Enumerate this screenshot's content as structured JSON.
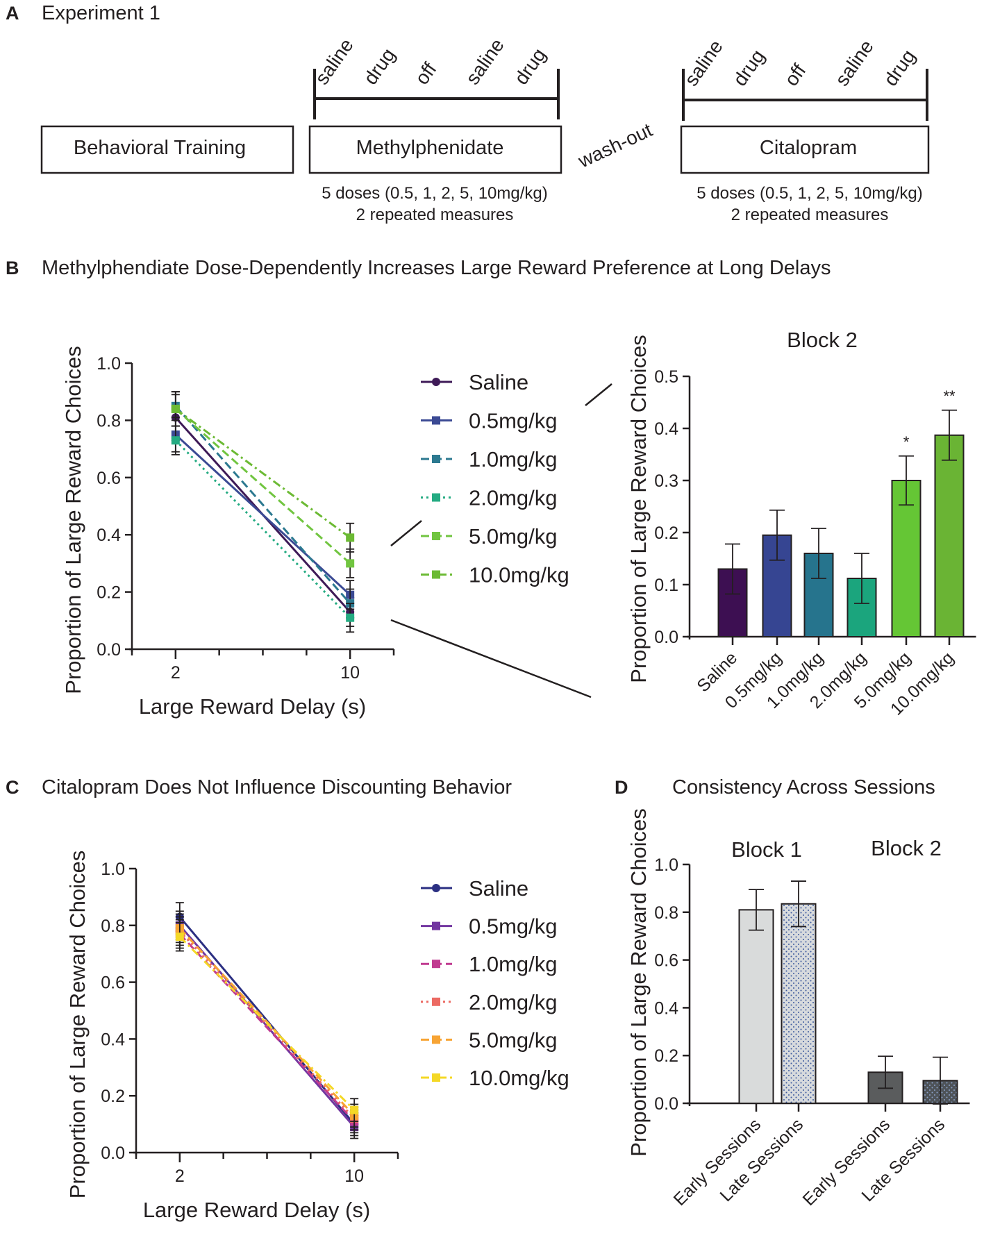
{
  "panels": {
    "A": {
      "letter": "A",
      "title": "Experiment 1",
      "boxes": {
        "training": "Behavioral Training",
        "mph": "Methylphenidate",
        "cit": "Citalopram"
      },
      "washout": "wash-out",
      "phases": [
        "saline",
        "drug",
        "off",
        "saline",
        "drug"
      ],
      "dose_note": "5 doses (0.5, 1, 2, 5, 10mg/kg)",
      "measures_note": "2 repeated measures"
    },
    "B": {
      "letter": "B",
      "title": "Methylphendiate Dose-Dependently Increases Large Reward Preference at Long Delays"
    },
    "C": {
      "letter": "C",
      "title": "Citalopram Does Not Influence Discounting Behavior"
    },
    "D": {
      "letter": "D",
      "title": "Consistency Across Sessions"
    }
  },
  "colors": {
    "text": "#231f20",
    "mph_series": [
      "#3e1a57",
      "#3b4a94",
      "#2c7990",
      "#24ab82",
      "#71c540",
      "#6cba34"
    ],
    "mph_bars": [
      "#3d0f52",
      "#364592",
      "#26748d",
      "#1ba57d",
      "#65c635",
      "#6ab434"
    ],
    "cit_series": [
      "#2b2f82",
      "#7236a0",
      "#c03a90",
      "#ec6a63",
      "#f7a434",
      "#f4d826"
    ],
    "session_bars": [
      "#d9dbdb",
      "#d7dadd",
      "#5a5c5d",
      "#4e5358"
    ]
  },
  "chart_data": [
    {
      "id": "B-line",
      "type": "line",
      "x": [
        2,
        10
      ],
      "xticks": [
        "2",
        "10"
      ],
      "xlim": [
        0,
        12
      ],
      "ylim": [
        0,
        1
      ],
      "yticks": [
        "0.0",
        "0.2",
        "0.4",
        "0.6",
        "0.8",
        "1.0"
      ],
      "xlabel": "Large Reward  Delay  (s)",
      "ylabel": "Proportion of  Large  Reward Choices",
      "legend_position": "right",
      "series": [
        {
          "name": "Saline",
          "values": [
            0.81,
            0.13
          ],
          "err": [
            0.08,
            0.05
          ],
          "marker": "circle",
          "dash": ""
        },
        {
          "name": "0.5mg/kg",
          "values": [
            0.75,
            0.19
          ],
          "err": [
            0.06,
            0.05
          ],
          "marker": "square",
          "dash": ""
        },
        {
          "name": "1.0mg/kg",
          "values": [
            0.85,
            0.16
          ],
          "err": [
            0.05,
            0.05
          ],
          "marker": "square",
          "dash": "12,6"
        },
        {
          "name": "2.0mg/kg",
          "values": [
            0.73,
            0.11
          ],
          "err": [
            0.05,
            0.05
          ],
          "marker": "square",
          "dash": "3,5"
        },
        {
          "name": "5.0mg/kg",
          "values": [
            0.84,
            0.3
          ],
          "err": [
            0.06,
            0.05
          ],
          "marker": "square",
          "dash": "12,6"
        },
        {
          "name": "10.0mg/kg",
          "values": [
            0.84,
            0.39
          ],
          "err": [
            0.06,
            0.05
          ],
          "marker": "square",
          "dash": "12,5,3,5"
        }
      ]
    },
    {
      "id": "B-bar",
      "type": "bar",
      "title": "Block 2",
      "categories": [
        "Saline",
        "0.5mg/kg",
        "1.0mg/kg",
        "2.0mg/kg",
        "5.0mg/kg",
        "10.0mg/kg"
      ],
      "values": [
        0.13,
        0.195,
        0.16,
        0.112,
        0.3,
        0.387
      ],
      "err": [
        0.048,
        0.048,
        0.048,
        0.048,
        0.047,
        0.048
      ],
      "significance": [
        "",
        "",
        "",
        "",
        "*",
        "**"
      ],
      "ylim": [
        0,
        0.5
      ],
      "yticks": [
        "0.0",
        "0.1",
        "0.2",
        "0.3",
        "0.4",
        "0.5"
      ],
      "ylabel": "Proportion of  Large  Reward Choices"
    },
    {
      "id": "C-line",
      "type": "line",
      "x": [
        2,
        10
      ],
      "xticks": [
        "2",
        "10"
      ],
      "xlim": [
        0,
        12
      ],
      "ylim": [
        0,
        1
      ],
      "yticks": [
        "0.0",
        "0.2",
        "0.4",
        "0.6",
        "0.8",
        "1.0"
      ],
      "xlabel": "Large Reward  Delay  (s)",
      "ylabel": "Proportion of  Large  Reward Choices",
      "legend_position": "right",
      "series": [
        {
          "name": "Saline",
          "values": [
            0.83,
            0.1
          ],
          "err": [
            0.05,
            0.04
          ],
          "marker": "circle",
          "dash": ""
        },
        {
          "name": "0.5mg/kg",
          "values": [
            0.8,
            0.09
          ],
          "err": [
            0.05,
            0.04
          ],
          "marker": "square",
          "dash": ""
        },
        {
          "name": "1.0mg/kg",
          "values": [
            0.77,
            0.11
          ],
          "err": [
            0.05,
            0.04
          ],
          "marker": "square",
          "dash": "12,6"
        },
        {
          "name": "2.0mg/kg",
          "values": [
            0.78,
            0.12
          ],
          "err": [
            0.05,
            0.04
          ],
          "marker": "square",
          "dash": "3,5"
        },
        {
          "name": "5.0mg/kg",
          "values": [
            0.79,
            0.13
          ],
          "err": [
            0.05,
            0.04
          ],
          "marker": "square",
          "dash": "12,6"
        },
        {
          "name": "10.0mg/kg",
          "values": [
            0.76,
            0.15
          ],
          "err": [
            0.05,
            0.04
          ],
          "marker": "square",
          "dash": "12,5,3,5"
        }
      ]
    },
    {
      "id": "D-bar",
      "type": "bar",
      "groups": [
        "Block 1",
        "Block 2"
      ],
      "categories": [
        "Early Sessions",
        "Late Sessions",
        "Early Sessions",
        "Late Sessions"
      ],
      "values": [
        0.81,
        0.835,
        0.13,
        0.095
      ],
      "err": [
        0.085,
        0.095,
        0.067,
        0.098
      ],
      "ylim": [
        0,
        1
      ],
      "yticks": [
        "0.0",
        "0.2",
        "0.4",
        "0.6",
        "0.8",
        "1.0"
      ],
      "ylabel": "Proportion of  Large  Reward Choices"
    }
  ]
}
